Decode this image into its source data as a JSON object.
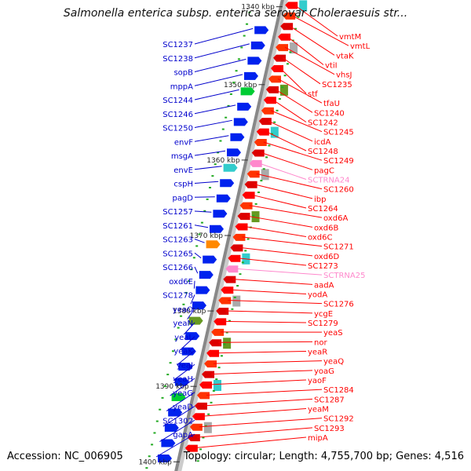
{
  "title": "Salmonella enterica subsp. enterica serovar Choleraesuis str...",
  "accession_text": "Accession: NC_006905",
  "summary_text": "Topology: circular; Length: 4,755,700 bp; Genes: 4,516",
  "colors": {
    "forward_label": "#0000cc",
    "reverse_label": "#ff0000",
    "rna_label": "#ff88cc",
    "backbone": "#888888",
    "tick": "#22aa22"
  },
  "kbp_ticks": [
    {
      "label": "1340 kbp",
      "t": 0.0
    },
    {
      "label": "1350 kbp",
      "t": 0.16
    },
    {
      "label": "1360 kbp",
      "t": 0.315
    },
    {
      "label": "1370 kbp",
      "t": 0.47
    },
    {
      "label": "1380 kbp",
      "t": 0.625
    },
    {
      "label": "1390 kbp",
      "t": 0.78
    },
    {
      "label": "1400 kbp",
      "t": 0.935
    }
  ],
  "left_labels": [
    "SC1237",
    "SC1238",
    "sopB",
    "mppA",
    "SC1244",
    "SC1246",
    "SC1250",
    "envF",
    "msgA",
    "envE",
    "cspH",
    "pagD",
    "SC1257",
    "SC1261",
    "SC1263",
    "SC1265",
    "SC1266",
    "oxd6E",
    "SC1278",
    "yeaO",
    "yeaN",
    "yeaL",
    "yeaK",
    "yeaJ",
    "yeaH",
    "yeaG",
    "yeaD",
    "SC1302",
    "gapA"
  ],
  "right_labels": [
    "vmtM",
    "vmtL",
    "vtaK",
    "vtiI",
    "vhsJ",
    "SC1235",
    "stf",
    "tfaU",
    "SC1240",
    "SC1242",
    "SC1245",
    "icdA",
    "SC1248",
    "SC1249",
    "pagC",
    "SCTRNA24",
    "SC1260",
    "ibp",
    "SC1264",
    "oxd6A",
    "oxd6B",
    "oxd6C",
    "SC1271",
    "oxd6D",
    "SC1273",
    "SCTRNA25",
    "aadA",
    "yodA",
    "SC1276",
    "ycgE",
    "SC1279",
    "yeaS",
    "nor",
    "yeaR",
    "yeaQ",
    "yoaG",
    "yaoF",
    "SC1284",
    "SC1287",
    "yeaM",
    "SC1292",
    "SC1293",
    "mipA"
  ],
  "rna_labels": [
    "SCTRNA24",
    "SCTRNA25"
  ]
}
